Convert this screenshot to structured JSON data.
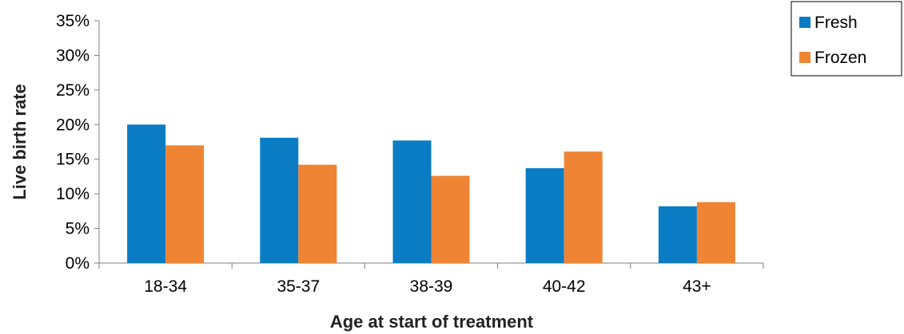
{
  "chart_data": {
    "type": "bar",
    "title": "",
    "xlabel": "Age at start of treatment",
    "ylabel": "Live birth rate",
    "categories": [
      "18-34",
      "35-37",
      "38-39",
      "40-42",
      "43+"
    ],
    "series": [
      {
        "name": "Fresh",
        "color": "#0a7cc4",
        "values": [
          20.0,
          18.1,
          17.7,
          13.7,
          8.2
        ]
      },
      {
        "name": "Frozen",
        "color": "#ee8434",
        "values": [
          17.0,
          14.2,
          12.6,
          16.1,
          8.8
        ]
      }
    ],
    "ylim": [
      0,
      35
    ],
    "yticks": [
      0,
      5,
      10,
      15,
      20,
      25,
      30,
      35
    ],
    "ytick_labels": [
      "0%",
      "5%",
      "10%",
      "15%",
      "20%",
      "25%",
      "30%",
      "35%"
    ],
    "grid": false,
    "legend_position": "top-right"
  }
}
